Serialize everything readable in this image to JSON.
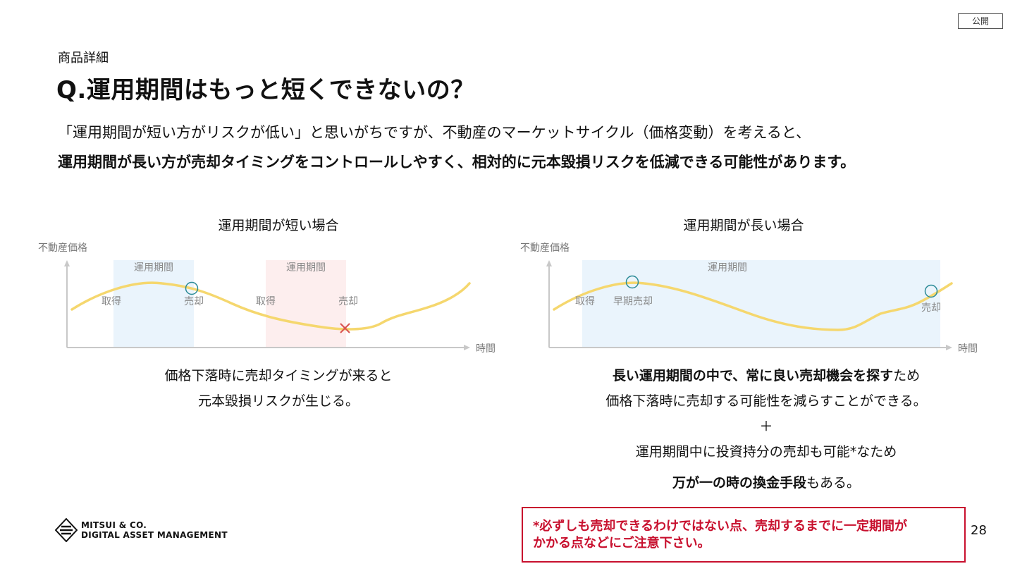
{
  "badge": "公開",
  "section_label": "商品詳細",
  "title": "Q.運用期間はもっと短くできないの？",
  "intro": {
    "line1": "「運用期間が短い方がリスクが低い」と思いがちですが、不動産のマーケットサイクル（価格変動）を考えると、",
    "line2": "運用期間が長い方が売却タイミングをコントロールしやすく、相対的に元本毀損リスクを低減できる可能性があります。"
  },
  "left_chart": {
    "title": "運用期間が短い場合",
    "ylabel": "不動産価格",
    "xlabel": "時間",
    "period1_label": "運用期間",
    "period2_label": "運用期間",
    "acquire1": "取得",
    "sell1": "売却",
    "acquire2": "取得",
    "sell2": "売却",
    "caption_line1": "価格下落時に売却タイミングが来ると",
    "caption_line2": "元本毀損リスクが生じる。"
  },
  "right_chart": {
    "title": "運用期間が長い場合",
    "ylabel": "不動産価格",
    "xlabel": "時間",
    "period_label": "運用期間",
    "acquire": "取得",
    "early_sell": "早期売却",
    "sell": "売却",
    "caption_line1_bold": "長い運用期間の中で、常に良い売却機会を探す",
    "caption_line1_rest": "ため",
    "caption_line2": "価格下落時に売却する可能性を減らすことができる。",
    "plus": "＋",
    "caption_line3": "運用期間中に投資持分の売却も可能*なため",
    "caption_line4_bold": "万が一の時の換金手段",
    "caption_line4_rest": "もある。"
  },
  "note": {
    "line1": "*必ずしも売却できるわけではない点、売却するまでに一定期間が",
    "line2": "かかる点などにご注意下さい。"
  },
  "logo": {
    "line1": "MITSUI & CO.",
    "line2": "DIGITAL ASSET MANAGEMENT"
  },
  "page_number": "28",
  "colors": {
    "curve": "#f5d76e",
    "period_blue": "#eaf4fc",
    "period_red": "#fdeeee",
    "marker_circle": "#2a8a96",
    "marker_x": "#d9534f",
    "note_red": "#c8102e",
    "axis": "#c8c8c8"
  }
}
